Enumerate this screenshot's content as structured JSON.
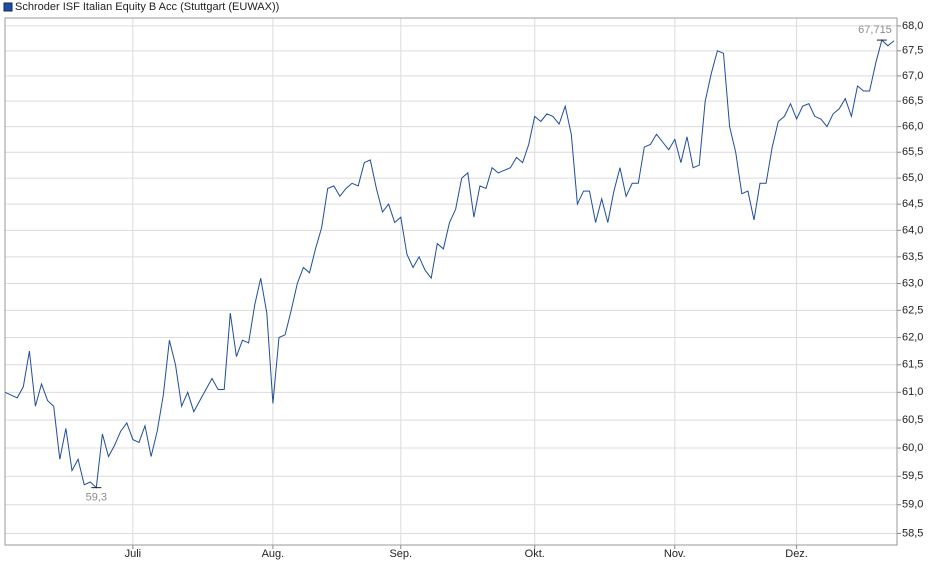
{
  "chart_data": {
    "type": "line",
    "log": true,
    "grid": true,
    "series": [
      {
        "name": "Schroder ISF Italian Equity B Acc (Stuttgart (EUWAX))",
        "color": "#1f4e9a",
        "values": [
          61.0,
          60.95,
          60.9,
          61.1,
          61.75,
          60.75,
          61.15,
          60.85,
          60.75,
          59.8,
          60.35,
          59.6,
          59.8,
          59.35,
          59.4,
          59.3,
          60.25,
          59.85,
          60.05,
          60.3,
          60.45,
          60.15,
          60.1,
          60.4,
          59.85,
          60.3,
          60.95,
          61.95,
          61.5,
          60.75,
          61.0,
          60.65,
          60.85,
          61.05,
          61.25,
          61.05,
          61.05,
          62.45,
          61.65,
          61.95,
          61.9,
          62.6,
          63.1,
          62.45,
          60.8,
          62.0,
          62.05,
          62.5,
          63.0,
          63.3,
          63.2,
          63.65,
          64.05,
          64.8,
          64.85,
          64.65,
          64.8,
          64.9,
          64.85,
          65.3,
          65.35,
          64.8,
          64.35,
          64.5,
          64.15,
          64.25,
          63.55,
          63.3,
          63.5,
          63.25,
          63.1,
          63.75,
          63.65,
          64.15,
          64.4,
          65.0,
          65.1,
          64.25,
          64.85,
          64.8,
          65.2,
          65.1,
          65.15,
          65.2,
          65.4,
          65.3,
          65.65,
          66.2,
          66.1,
          66.25,
          66.2,
          66.05,
          66.4,
          65.85,
          64.5,
          64.75,
          64.75,
          64.15,
          64.6,
          64.15,
          64.75,
          65.2,
          64.65,
          64.9,
          64.9,
          65.6,
          65.65,
          65.85,
          65.7,
          65.55,
          65.75,
          65.3,
          65.8,
          65.2,
          65.25,
          66.5,
          67.05,
          67.5,
          67.45,
          66.0,
          65.5,
          64.7,
          64.75,
          64.2,
          64.9,
          64.9,
          65.6,
          66.1,
          66.2,
          66.45,
          66.15,
          66.4,
          66.45,
          66.2,
          66.15,
          66.0,
          66.25,
          66.35,
          66.55,
          66.2,
          66.8,
          66.7,
          66.7,
          67.25,
          67.715,
          67.6,
          67.7
        ]
      }
    ],
    "categories": [
      null,
      null,
      null,
      null,
      null,
      null,
      null,
      null,
      null,
      null,
      null,
      null,
      null,
      null,
      null,
      null,
      null,
      null,
      null,
      null,
      null,
      "Juli",
      null,
      null,
      null,
      null,
      null,
      null,
      null,
      null,
      null,
      null,
      null,
      null,
      null,
      null,
      null,
      null,
      null,
      null,
      null,
      null,
      null,
      null,
      "Aug.",
      null,
      null,
      null,
      null,
      null,
      null,
      null,
      null,
      null,
      null,
      null,
      null,
      null,
      null,
      null,
      null,
      null,
      null,
      null,
      null,
      "Sep.",
      null,
      null,
      null,
      null,
      null,
      null,
      null,
      null,
      null,
      null,
      null,
      null,
      null,
      null,
      null,
      null,
      null,
      null,
      null,
      null,
      null,
      "Okt.",
      null,
      null,
      null,
      null,
      null,
      null,
      null,
      null,
      null,
      null,
      null,
      null,
      null,
      null,
      null,
      null,
      null,
      null,
      null,
      null,
      null,
      null,
      "Nov.",
      null,
      null,
      null,
      null,
      null,
      null,
      null,
      null,
      null,
      null,
      null,
      null,
      null,
      null,
      null,
      null,
      null,
      null,
      null,
      "Dez.",
      null,
      null,
      null,
      null,
      null,
      null,
      null,
      null,
      null,
      null,
      null,
      null,
      null,
      null,
      null,
      null
    ],
    "min_label": "59,3",
    "max_label": "67,715",
    "ylim": [
      58.3,
      68.16
    ],
    "yticks": [
      {
        "value": 58.5,
        "label": "58,5"
      },
      {
        "value": 59,
        "label": "59,0"
      },
      {
        "value": 59.5,
        "label": "59,5"
      },
      {
        "value": 60,
        "label": "60,0"
      },
      {
        "value": 60.5,
        "label": "60,5"
      },
      {
        "value": 61,
        "label": "61,0"
      },
      {
        "value": 61.5,
        "label": "61,5"
      },
      {
        "value": 62,
        "label": "62,0"
      },
      {
        "value": 62.5,
        "label": "62,5"
      },
      {
        "value": 63,
        "label": "63,0"
      },
      {
        "value": 63.5,
        "label": "63,5"
      },
      {
        "value": 64,
        "label": "64,0"
      },
      {
        "value": 64.5,
        "label": "64,5"
      },
      {
        "value": 65,
        "label": "65,0"
      },
      {
        "value": 65.5,
        "label": "65,5"
      },
      {
        "value": 66,
        "label": "66,0"
      },
      {
        "value": 66.5,
        "label": "66,5"
      },
      {
        "value": 67,
        "label": "67,0"
      },
      {
        "value": 67.5,
        "label": "67,5"
      },
      {
        "value": 68,
        "label": "68,0"
      }
    ]
  }
}
